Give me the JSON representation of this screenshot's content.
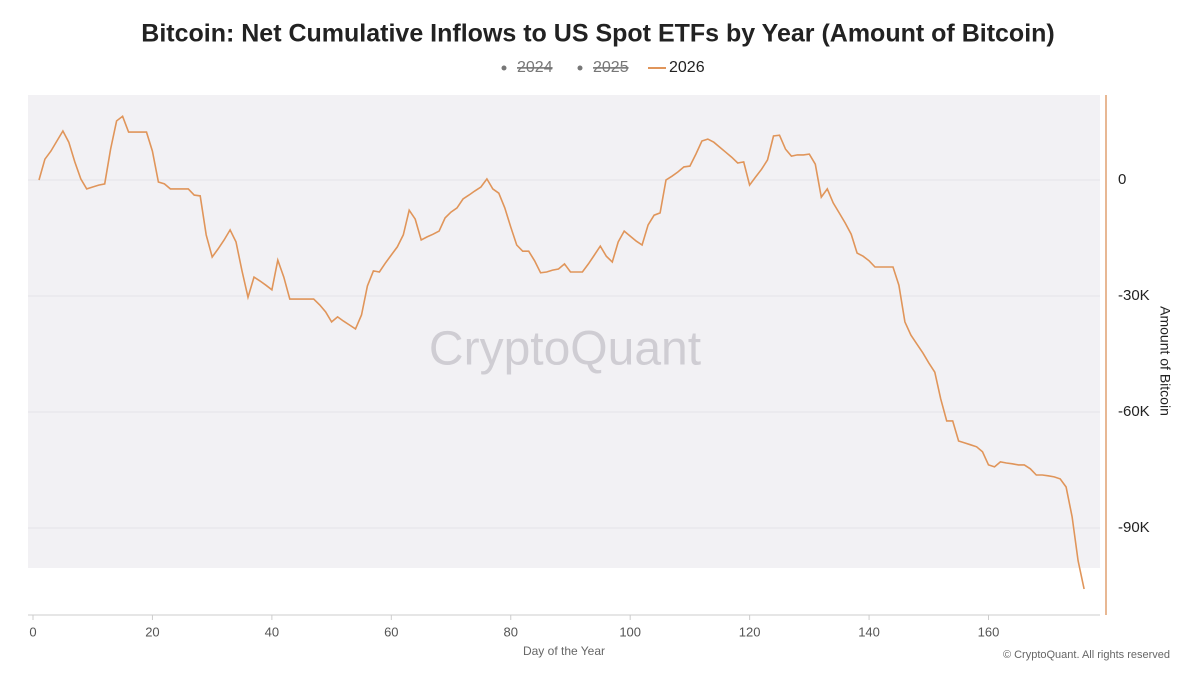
{
  "chart_data": {
    "type": "line",
    "title": "Bitcoin: Net Cumulative Inflows to US Spot ETFs by Year (Amount of Bitcoin)",
    "x_label": "Day of the Year",
    "y_label": "Amount of Bitcoin",
    "watermark": "CryptoQuant",
    "footer": "© CryptoQuant. All rights reserved",
    "xlim": [
      0,
      178
    ],
    "xticks": [
      0,
      20,
      40,
      60,
      80,
      100,
      120,
      140,
      160
    ],
    "ylim": [
      -112000,
      22000
    ],
    "yticks": [
      {
        "value": 0,
        "label": "0"
      },
      {
        "value": -30000,
        "label": "-30K"
      },
      {
        "value": -60000,
        "label": "-60K"
      },
      {
        "value": -90000,
        "label": "-90K"
      }
    ],
    "grid": true,
    "series": [
      {
        "name": "2024",
        "color": "#777777",
        "visible": false,
        "x": [],
        "values": []
      },
      {
        "name": "2025",
        "color": "#777777",
        "visible": false,
        "x": [],
        "values": []
      },
      {
        "name": "2026",
        "color": "#e0955a",
        "visible": true,
        "x": [
          1,
          2,
          3,
          4,
          5,
          6,
          7,
          8,
          9,
          10,
          11,
          12,
          13,
          14,
          15,
          16,
          17,
          18,
          19,
          20,
          21,
          22,
          23,
          24,
          25,
          26,
          27,
          28,
          29,
          30,
          31,
          32,
          33,
          34,
          35,
          36,
          37,
          38,
          39,
          40,
          41,
          42,
          43,
          44,
          45,
          46,
          47,
          48,
          49,
          50,
          51,
          52,
          53,
          54,
          55,
          56,
          57,
          58,
          59,
          60,
          61,
          62,
          63,
          64,
          65,
          66,
          67,
          68,
          69,
          70,
          71,
          72,
          73,
          74,
          75,
          76,
          77,
          78,
          79,
          80,
          81,
          82,
          83,
          84,
          85,
          86,
          87,
          88,
          89,
          90,
          91,
          92,
          93,
          94,
          95,
          96,
          97,
          98,
          99,
          100,
          101,
          102,
          103,
          104,
          105,
          106,
          107,
          108,
          109,
          110,
          111,
          112,
          113,
          114,
          115,
          116,
          117,
          118,
          119,
          120,
          121,
          122,
          123,
          124,
          125,
          126,
          127,
          128,
          129,
          130,
          131,
          132,
          133,
          134,
          135,
          136,
          137,
          138,
          139,
          140,
          141,
          142,
          143,
          144,
          145,
          146,
          147,
          148,
          149,
          150,
          151,
          152,
          153,
          154,
          155,
          156,
          157,
          158,
          159,
          160,
          161,
          162,
          163,
          164,
          165,
          166,
          167,
          168,
          169,
          170,
          171,
          172,
          173,
          174,
          175,
          176
        ],
        "values": [
          0,
          5400,
          7500,
          10100,
          12700,
          9800,
          4700,
          300,
          -2300,
          -1800,
          -1300,
          -1000,
          8000,
          15300,
          16500,
          12400,
          12400,
          12400,
          12400,
          7500,
          -500,
          -1000,
          -2300,
          -2300,
          -2300,
          -2300,
          -3900,
          -4100,
          -14200,
          -19900,
          -17800,
          -15500,
          -12900,
          -16000,
          -23500,
          -30300,
          -25100,
          -26100,
          -27200,
          -28400,
          -20700,
          -25100,
          -30800,
          -30800,
          -30800,
          -30800,
          -30800,
          -32300,
          -34100,
          -36700,
          -35400,
          -36500,
          -37500,
          -38500,
          -34900,
          -27400,
          -23500,
          -23800,
          -21500,
          -19400,
          -17300,
          -14200,
          -7800,
          -10100,
          -15500,
          -14700,
          -14000,
          -13200,
          -9800,
          -8300,
          -7200,
          -4900,
          -3900,
          -2800,
          -1800,
          300,
          -2300,
          -3400,
          -7200,
          -12200,
          -16800,
          -18400,
          -18400,
          -20900,
          -24000,
          -23800,
          -23300,
          -23000,
          -21700,
          -23800,
          -23800,
          -23800,
          -21700,
          -19400,
          -17100,
          -19700,
          -21200,
          -16000,
          -13200,
          -14500,
          -15800,
          -16800,
          -11600,
          -9100,
          -8500,
          0,
          1000,
          2100,
          3400,
          3600,
          6700,
          10100,
          10600,
          9800,
          8500,
          7200,
          5900,
          4400,
          4700,
          -1300,
          800,
          2800,
          5200,
          11400,
          11600,
          8000,
          6200,
          6500,
          6500,
          6700,
          4100,
          -4400,
          -2300,
          -5900,
          -8500,
          -11100,
          -14000,
          -18900,
          -19700,
          -20900,
          -22500,
          -22500,
          -22500,
          -22500,
          -27200,
          -36700,
          -40100,
          -42400,
          -44700,
          -47300,
          -49700,
          -56600,
          -62300,
          -62300,
          -67500,
          -68000,
          -68500,
          -69000,
          -70300,
          -73700,
          -74200,
          -72900,
          -73200,
          -73400,
          -73700,
          -73700,
          -74700,
          -76300,
          -76300,
          -76500,
          -76800,
          -77300,
          -79400,
          -87100,
          -98500,
          -105800
        ]
      }
    ]
  }
}
